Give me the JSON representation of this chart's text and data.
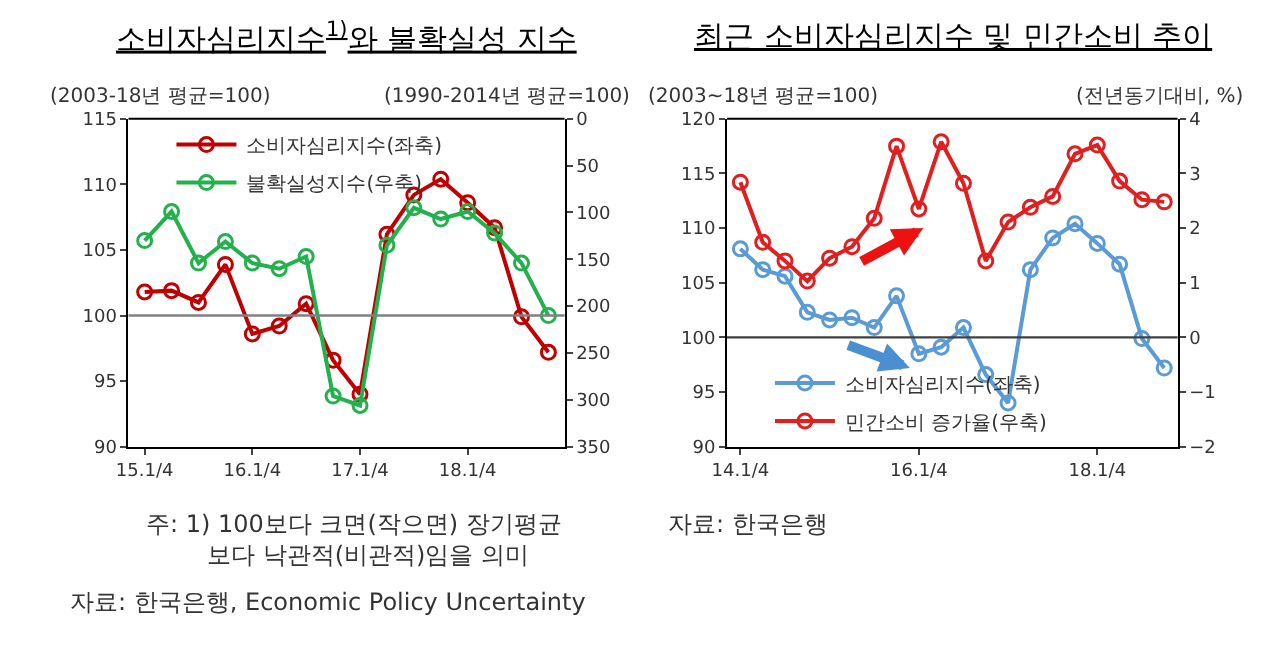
{
  "chart_data": [
    {
      "type": "line",
      "title": "소비자심리지수$^{1)}$와 불확실성 지수",
      "ylabel": "(2003-18년 평균=100)",
      "y2label": "(1990-2014년 평균=100)",
      "categories": [
        "15.1/4",
        null,
        null,
        null,
        "16.1/4",
        null,
        null,
        null,
        "17.1/4",
        null,
        null,
        null,
        "18.1/4",
        null,
        null,
        null
      ],
      "series": [
        {
          "name": "소비자심리지수(좌축)",
          "color": "#c00000",
          "values": [
            101.8,
            101.9,
            101.0,
            103.9,
            98.6,
            99.2,
            100.9,
            96.6,
            94.0,
            106.2,
            109.2,
            110.4,
            108.6,
            106.7,
            99.9,
            97.2
          ]
        },
        {
          "name": "불확실성지수(우축)",
          "color": "#22b14c",
          "axis": "y2",
          "values": [
            130,
            99,
            154,
            131,
            154,
            160,
            147,
            296,
            306,
            135,
            95,
            107,
            99,
            122,
            154,
            210
          ]
        }
      ],
      "ylim": [
        90,
        115
      ],
      "yticks": [
        90,
        95,
        100,
        105,
        110,
        115
      ],
      "y2lim": [
        350,
        0
      ],
      "y2ticks": [
        0,
        50,
        100,
        150,
        200,
        250,
        300,
        350
      ],
      "ref_lines": [
        {
          "axis": "y",
          "value": 100,
          "label": null,
          "color": "#808080"
        }
      ],
      "marker": "circle",
      "legend": "top left",
      "annotations": [
        "주: 1) 100보다 크면(작으면) 장기평균 보다 낙관적(비관적)임을 의미",
        "자료: 한국은행, Economic Policy Uncertainty"
      ]
    },
    {
      "type": "line",
      "title": "최근 소비자심리지수 및 민간소비 추이",
      "ylabel": "(2003~18년 평균=100)",
      "y2label": "(전년동기대비, %)",
      "categories": [
        "14.1/4",
        null,
        null,
        null,
        null,
        null,
        null,
        null,
        "16.1/4",
        null,
        null,
        null,
        null,
        null,
        null,
        null,
        "18.1/4",
        null,
        null,
        null
      ],
      "series": [
        {
          "name": "소비자심리지수(좌축)",
          "color": "#5b9bd5",
          "values": [
            108.1,
            106.2,
            105.6,
            102.3,
            101.6,
            101.8,
            100.9,
            103.8,
            98.5,
            99.1,
            100.9,
            96.6,
            94.0,
            106.2,
            109.1,
            110.4,
            108.6,
            106.7,
            99.9,
            97.2
          ]
        },
        {
          "name": "민간소비 증가율(우축)",
          "color": "#e02020",
          "axis": "y2",
          "values": [
            2.84,
            1.74,
            1.4,
            1.03,
            1.45,
            1.66,
            2.18,
            3.5,
            2.35,
            3.58,
            2.82,
            1.4,
            2.11,
            2.38,
            2.58,
            3.36,
            3.52,
            2.86,
            2.52,
            2.48
          ]
        }
      ],
      "ylim": [
        90,
        120
      ],
      "yticks": [
        90,
        95,
        100,
        105,
        110,
        115,
        120
      ],
      "y2lim": [
        -2,
        4
      ],
      "y2ticks": [
        {
          "value": -2,
          "label": "−2"
        },
        {
          "value": -1,
          "label": "−1"
        },
        0,
        1,
        2,
        3,
        4
      ],
      "ref_lines": [
        {
          "axis": "y",
          "value": 100,
          "label": null,
          "color": "#404040"
        }
      ],
      "marker": "circle",
      "legend": "bottom left",
      "annotations": [
        "자료: 한국은행"
      ]
    }
  ]
}
